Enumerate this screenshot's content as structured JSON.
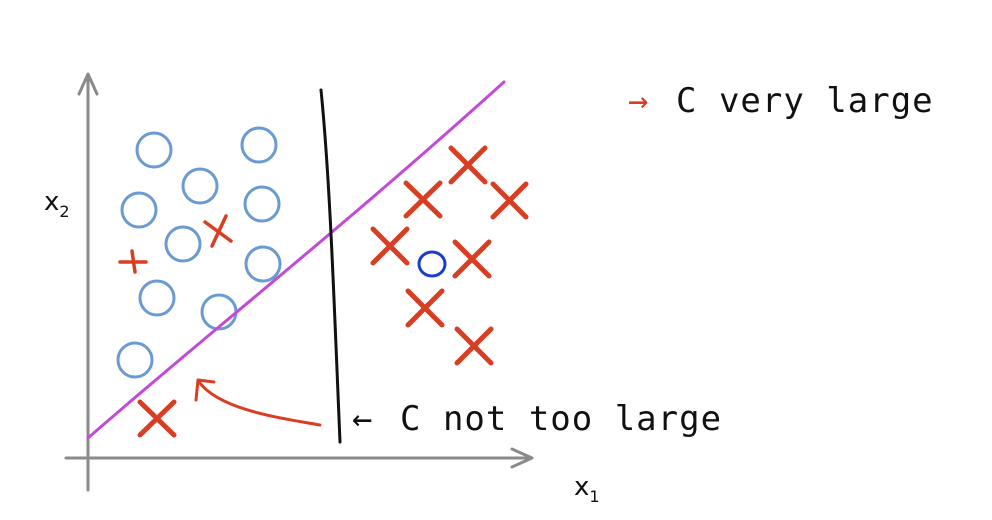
{
  "axes": {
    "x_label": "x",
    "x_label_sub": "1",
    "y_label": "x",
    "y_label_sub": "2"
  },
  "annotations": {
    "magenta_boundary": {
      "arrow": "→",
      "text": "C  very  large"
    },
    "black_boundary": {
      "arrow": "←",
      "text": "C  not too large"
    }
  },
  "colors": {
    "circle": "#6a9ad2",
    "outlier_circle": "#1a3ec8",
    "cross": "#d93d22",
    "magenta_boundary": "#c24ad8",
    "black_boundary": "#111111",
    "axis": "#8a8a8a",
    "annotation_arrow": "#d93d22"
  },
  "marker_icons": {
    "positive": "cross-marker",
    "negative": "circle-marker"
  }
}
